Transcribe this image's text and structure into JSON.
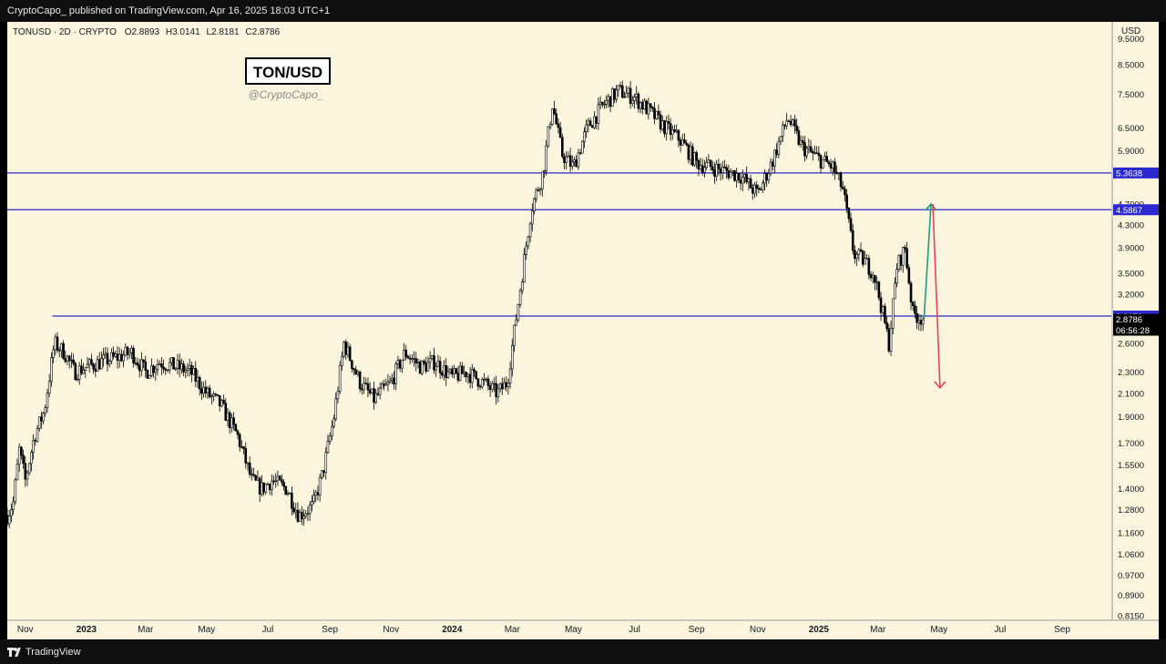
{
  "header": {
    "published_line": "CryptoCapo_ published on TradingView.com, Apr 16, 2025 18:03 UTC+1"
  },
  "legend": {
    "symbol_line": "TONUSD · 2D · CRYPTO",
    "open": "O2.8893",
    "high": "H3.0141",
    "low": "L2.8181",
    "close": "C2.8786"
  },
  "watermark": {
    "title": "TON/USD",
    "handle": "@CryptoCapo_"
  },
  "price_axis": {
    "currency": "USD",
    "labels": [
      "9.5000",
      "8.5000",
      "7.5000",
      "6.5000",
      "5.9000",
      "4.7000",
      "4.3000",
      "3.9000",
      "3.5000",
      "3.2000",
      "2.6000",
      "2.3000",
      "2.1000",
      "1.9000",
      "1.7000",
      "1.5500",
      "1.4000",
      "1.2800",
      "1.1600",
      "1.0600",
      "0.9700",
      "0.8900",
      "0.8150"
    ]
  },
  "price_tags": {
    "level_1": "5.3638",
    "level_2": "4.5867",
    "level_3": "2.9179",
    "last_price": "2.8786",
    "countdown": "06:56:28"
  },
  "time_axis": {
    "labels": [
      "Nov",
      "2023",
      "Mar",
      "May",
      "Jul",
      "Sep",
      "Nov",
      "2024",
      "Mar",
      "May",
      "Jul",
      "Sep",
      "Nov",
      "2025",
      "Mar",
      "May",
      "Jul",
      "Sep"
    ]
  },
  "footer": {
    "brand": "TradingView"
  },
  "colors": {
    "background": "#fbf5dd",
    "candle": "#000000",
    "horizontal_levels": "#2a2ad0",
    "up_arrow": "#1a9e82",
    "down_arrow": "#e8445a",
    "last_price_tag": "#000000"
  },
  "chart_data": {
    "type": "candlestick",
    "symbol": "TONUSD",
    "timeframe": "2D",
    "title": "TON/USD",
    "y_scale": "log",
    "ylim": [
      0.8,
      10.2
    ],
    "xlim": [
      "2022-10-14",
      "2025-10-20"
    ],
    "horizontal_levels": [
      5.3638,
      4.5867,
      2.9179
    ],
    "last_price": 2.8786,
    "projection": {
      "up_target": 4.7,
      "down_target": 2.15
    },
    "price_path_dates": [
      "2022-10-14",
      "2022-10-20",
      "2022-10-26",
      "2022-11-01",
      "2022-11-10",
      "2022-11-20",
      "2022-11-30",
      "2022-12-10",
      "2022-12-20",
      "2023-01-01",
      "2023-01-15",
      "2023-02-01",
      "2023-02-15",
      "2023-03-01",
      "2023-03-15",
      "2023-04-01",
      "2023-04-15",
      "2023-05-01",
      "2023-05-15",
      "2023-06-01",
      "2023-06-15",
      "2023-06-25",
      "2023-07-05",
      "2023-07-20",
      "2023-08-01",
      "2023-08-15",
      "2023-08-25",
      "2023-09-05",
      "2023-09-15",
      "2023-10-01",
      "2023-10-15",
      "2023-11-01",
      "2023-11-15",
      "2023-12-01",
      "2023-12-15",
      "2024-01-01",
      "2024-01-15",
      "2024-02-01",
      "2024-02-15",
      "2024-02-25",
      "2024-03-05",
      "2024-03-12",
      "2024-03-20",
      "2024-04-01",
      "2024-04-10",
      "2024-04-20",
      "2024-05-01",
      "2024-05-15",
      "2024-06-01",
      "2024-06-15",
      "2024-07-01",
      "2024-07-15",
      "2024-08-01",
      "2024-08-15",
      "2024-09-01",
      "2024-09-15",
      "2024-10-01",
      "2024-10-15",
      "2024-11-01",
      "2024-11-15",
      "2024-12-01",
      "2024-12-15",
      "2025-01-01",
      "2025-01-15",
      "2025-01-25",
      "2025-02-05",
      "2025-02-15",
      "2025-02-25",
      "2025-03-05",
      "2025-03-12",
      "2025-03-20",
      "2025-03-28",
      "2025-04-05",
      "2025-04-16"
    ],
    "price_path_closes": [
      1.25,
      1.32,
      1.65,
      1.45,
      1.75,
      1.95,
      2.6,
      2.5,
      2.3,
      2.35,
      2.4,
      2.45,
      2.5,
      2.3,
      2.4,
      2.35,
      2.3,
      2.1,
      2.0,
      1.75,
      1.45,
      1.4,
      1.45,
      1.4,
      1.25,
      1.3,
      1.5,
      1.9,
      2.6,
      2.2,
      2.05,
      2.2,
      2.5,
      2.35,
      2.4,
      2.25,
      2.3,
      2.2,
      2.1,
      2.2,
      2.9,
      3.6,
      4.6,
      5.4,
      7.2,
      5.8,
      5.5,
      6.5,
      7.2,
      7.6,
      7.4,
      7.0,
      6.5,
      6.2,
      5.6,
      5.5,
      5.4,
      5.3,
      4.9,
      5.6,
      6.8,
      6.0,
      5.7,
      5.5,
      5.0,
      3.8,
      3.7,
      3.5,
      3.0,
      2.6,
      3.6,
      3.9,
      2.95,
      2.88
    ]
  }
}
